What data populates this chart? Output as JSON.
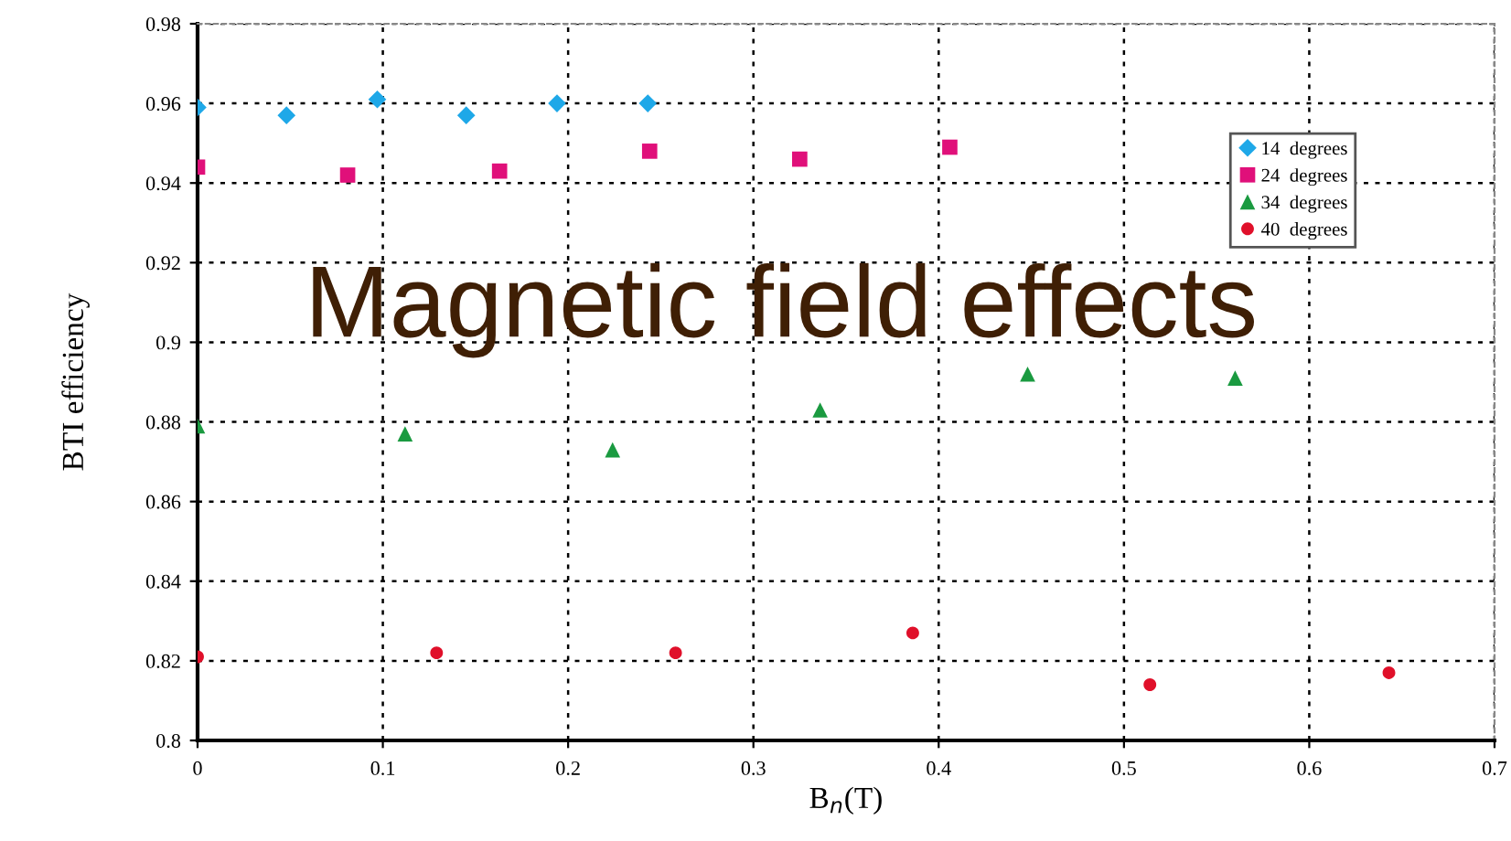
{
  "chart_data": {
    "type": "scatter",
    "title": "Magnetic field effects",
    "xlabel": "B$_{n}$(T)",
    "ylabel": "BTI efficiency",
    "xlim": [
      0,
      0.7
    ],
    "xticks": [
      0,
      0.1,
      0.2,
      0.3,
      0.4,
      0.5,
      0.6,
      0.7
    ],
    "ylim": [
      0.8,
      0.98
    ],
    "yticks": [
      0.8,
      0.82,
      0.84,
      0.86,
      0.88,
      0.9,
      0.92,
      0.94,
      0.96,
      0.98
    ],
    "grid": true,
    "legend": "top right",
    "series": [
      {
        "name": "14  degrees",
        "color": "#1ea8e8",
        "marker": "diamond",
        "x": [
          0,
          0.048,
          0.097,
          0.145,
          0.194,
          0.243
        ],
        "values": [
          0.959,
          0.957,
          0.961,
          0.957,
          0.96,
          0.96
        ]
      },
      {
        "name": "24  degrees",
        "color": "#e0107a",
        "marker": "square",
        "x": [
          0,
          0.081,
          0.163,
          0.244,
          0.325,
          0.406
        ],
        "values": [
          0.944,
          0.942,
          0.943,
          0.948,
          0.946,
          0.949
        ]
      },
      {
        "name": "34  degrees",
        "color": "#1a9a40",
        "marker": "triangle",
        "x": [
          0,
          0.112,
          0.224,
          0.336,
          0.448,
          0.56
        ],
        "values": [
          0.879,
          0.877,
          0.873,
          0.883,
          0.892,
          0.891
        ]
      },
      {
        "name": "40  degrees",
        "color": "#e0102a",
        "marker": "circle",
        "x": [
          0,
          0.129,
          0.258,
          0.386,
          0.514,
          0.643
        ],
        "values": [
          0.821,
          0.822,
          0.822,
          0.827,
          0.814,
          0.817
        ]
      }
    ]
  }
}
